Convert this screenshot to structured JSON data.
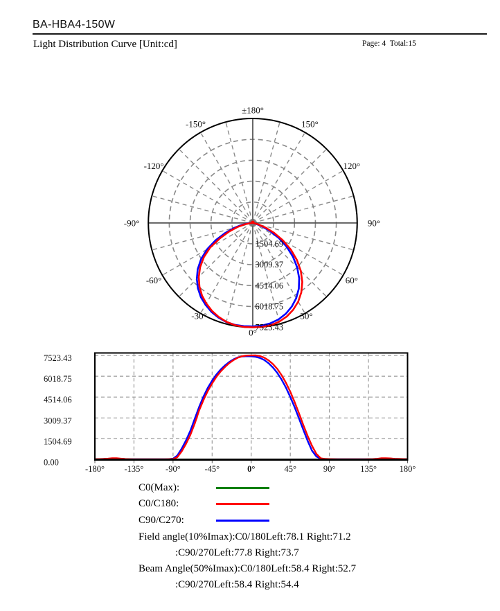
{
  "header": {
    "title": "BA-HBA4-150W",
    "subtitle": "Light Distribution Curve [Unit:cd]",
    "page_info": "Page: 4  Total:15"
  },
  "legend": {
    "entries": [
      {
        "label": "C0(Max):",
        "color": "#008000"
      },
      {
        "label": "C0/C180:",
        "color": "#ff0000"
      },
      {
        "label": "C90/C270:",
        "color": "#0000ff"
      }
    ]
  },
  "annotations": [
    {
      "text": "Field angle(10%Imax):C0/180Left:78.1 Right:71.2",
      "indent": 0
    },
    {
      "text": ":C90/270Left:77.8 Right:73.7",
      "indent": 1
    },
    {
      "text": "Beam Angle(50%Imax):C0/180Left:58.4 Right:52.7",
      "indent": 0
    },
    {
      "text": ":C90/270Left:58.4 Right:54.4",
      "indent": 1
    }
  ],
  "colors": {
    "grid": "#888888",
    "cart_grid": "#999999",
    "axis": "#555555",
    "outline": "#000000",
    "hub": "#777777",
    "ink": "#111111"
  },
  "chart_data": {
    "type": [
      "polar",
      "line"
    ],
    "unit": "cd",
    "angles_deg": [
      -180,
      -175,
      -170,
      -165,
      -160,
      -155,
      -150,
      -145,
      -140,
      -135,
      -130,
      -125,
      -120,
      -115,
      -110,
      -105,
      -100,
      -95,
      -90,
      -85,
      -80,
      -75,
      -70,
      -65,
      -60,
      -55,
      -50,
      -45,
      -40,
      -35,
      -30,
      -25,
      -20,
      -15,
      -10,
      -5,
      0,
      5,
      10,
      15,
      20,
      25,
      30,
      35,
      40,
      45,
      50,
      55,
      60,
      65,
      70,
      75,
      80,
      85,
      90,
      95,
      100,
      105,
      110,
      115,
      120,
      125,
      130,
      135,
      140,
      145,
      150,
      155,
      160,
      165,
      170,
      175,
      180
    ],
    "series": [
      {
        "name": "C0/C180",
        "color": "#ff0000",
        "values": [
          35,
          42,
          50,
          70,
          105,
          100,
          70,
          45,
          35,
          30,
          28,
          28,
          30,
          28,
          28,
          28,
          30,
          34,
          45,
          180,
          600,
          1150,
          1800,
          2600,
          3550,
          4300,
          4950,
          5500,
          5980,
          6380,
          6700,
          6980,
          7200,
          7370,
          7470,
          7515,
          7520,
          7523,
          7480,
          7360,
          7170,
          6900,
          6550,
          6100,
          5550,
          4900,
          4150,
          3350,
          2500,
          1700,
          1000,
          420,
          100,
          48,
          40,
          34,
          30,
          28,
          28,
          28,
          28,
          28,
          30,
          34,
          40,
          60,
          100,
          105,
          90,
          60,
          48,
          40,
          35
        ]
      },
      {
        "name": "C90/C270",
        "color": "#0000ff",
        "values": [
          30,
          36,
          44,
          60,
          85,
          80,
          58,
          38,
          30,
          27,
          26,
          26,
          26,
          26,
          26,
          26,
          28,
          36,
          70,
          300,
          800,
          1400,
          2100,
          2950,
          3800,
          4550,
          5180,
          5700,
          6150,
          6520,
          6810,
          7060,
          7250,
          7390,
          7450,
          7462,
          7455,
          7420,
          7340,
          7190,
          6960,
          6650,
          6260,
          5780,
          5200,
          4520,
          3780,
          2980,
          2150,
          1350,
          650,
          230,
          70,
          42,
          36,
          30,
          27,
          26,
          26,
          26,
          26,
          26,
          28,
          30,
          36,
          50,
          85,
          90,
          75,
          52,
          42,
          36,
          30
        ]
      }
    ],
    "polar": {
      "rmax": 7523.43,
      "ring_values": [
        1504.69,
        3009.37,
        4514.06,
        6018.75,
        7523.43
      ],
      "ring_labels": [
        "1504.69",
        "3009.37",
        "4514.06",
        "6018.75",
        "7523.43"
      ],
      "spoke_step_deg": 15,
      "angle_labels": [
        {
          "deg": 180,
          "label": "±180°"
        },
        {
          "deg": -150,
          "label": "-150°"
        },
        {
          "deg": 150,
          "label": "150°"
        },
        {
          "deg": -120,
          "label": "-120°"
        },
        {
          "deg": 120,
          "label": "120°"
        },
        {
          "deg": -90,
          "label": "-90°"
        },
        {
          "deg": 90,
          "label": "90°"
        },
        {
          "deg": -60,
          "label": "-60°"
        },
        {
          "deg": 60,
          "label": "60°"
        },
        {
          "deg": -30,
          "label": "-30°"
        },
        {
          "deg": 30,
          "label": "30°"
        },
        {
          "deg": 0,
          "label": "0°"
        }
      ]
    },
    "cartesian": {
      "ylim": [
        0,
        7523.43
      ],
      "xlim_deg": [
        -180,
        180
      ],
      "grid": true,
      "x_ticks_deg": [
        -180,
        -135,
        -90,
        -45,
        0,
        45,
        90,
        135,
        180
      ],
      "x_tick_labels": [
        "-180°",
        "-135°",
        "-90°",
        "-45°",
        "0°",
        "45°",
        "90°",
        "135°",
        "180°"
      ],
      "y_tick_values": [
        7523.43,
        6018.75,
        4514.06,
        3009.37,
        1504.69,
        0
      ],
      "y_tick_labels": [
        "7523.43",
        "6018.75",
        "4514.06",
        "3009.37",
        "1504.69",
        "0.00"
      ]
    }
  }
}
